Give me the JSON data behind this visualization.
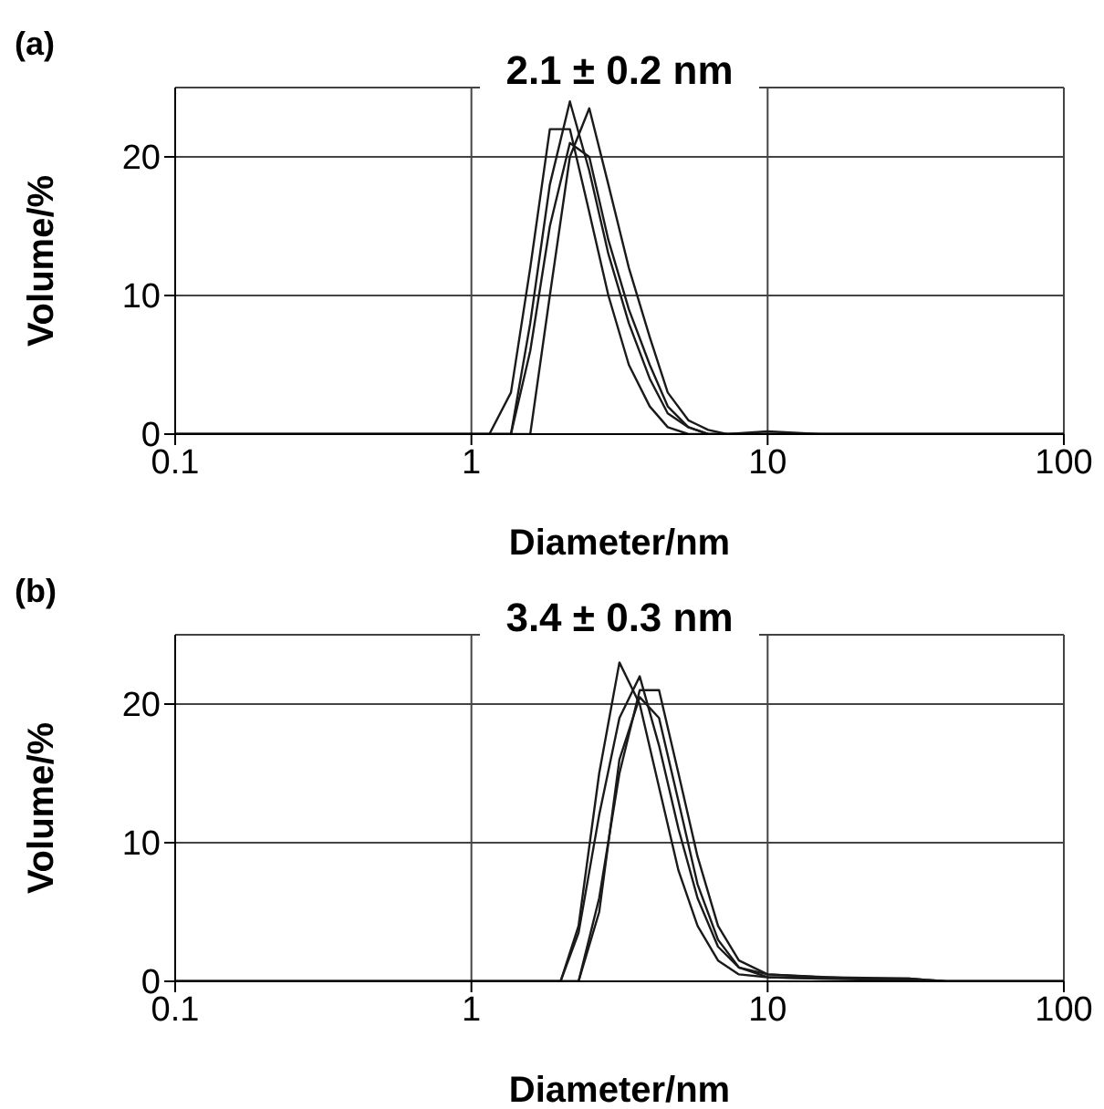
{
  "chart_data": [
    {
      "type": "line",
      "title": "2.1 ±  0.2 nm",
      "xlabel": "Diameter/nm",
      "ylabel": "Volume/%",
      "annotations": [
        "(a)"
      ],
      "log": "x",
      "grid": true,
      "line_style": "solid",
      "xlim": [
        0.1,
        100
      ],
      "xticks": [
        0.1,
        1,
        10,
        100
      ],
      "ylim": [
        0,
        25
      ],
      "yticks": [
        0,
        10,
        20
      ],
      "series": [
        {
          "color": "#1a1a1a",
          "x": [
            0.1,
            1.15,
            1.36,
            1.58,
            1.84,
            2.15,
            2.5,
            2.9,
            3.4,
            4.0,
            4.6,
            5.4,
            100
          ],
          "values": [
            0,
            0,
            3,
            12,
            22,
            22,
            16,
            10,
            5,
            2,
            0.5,
            0,
            0
          ]
        },
        {
          "color": "#1a1a1a",
          "x": [
            0.1,
            1.36,
            1.58,
            1.84,
            2.15,
            2.5,
            2.9,
            3.4,
            4.0,
            4.6,
            5.4,
            6.3,
            100
          ],
          "values": [
            0,
            0,
            8,
            18,
            24,
            19,
            13,
            8,
            4,
            1.5,
            0.5,
            0,
            0
          ]
        },
        {
          "color": "#1a1a1a",
          "x": [
            0.1,
            1.36,
            1.58,
            1.84,
            2.15,
            2.5,
            2.9,
            3.4,
            4.0,
            4.6,
            5.4,
            6.3,
            100
          ],
          "values": [
            0,
            0,
            6,
            15,
            21,
            20,
            14,
            9,
            5,
            2,
            0.5,
            0,
            0
          ]
        },
        {
          "color": "#1a1a1a",
          "x": [
            0.1,
            1.58,
            1.84,
            2.15,
            2.5,
            2.9,
            3.4,
            4.0,
            4.6,
            5.4,
            6.3,
            7.3,
            10,
            15,
            100
          ],
          "values": [
            0,
            0,
            10,
            20,
            23.5,
            18,
            12,
            7,
            3,
            1,
            0.3,
            0,
            0.2,
            0,
            0
          ]
        }
      ]
    },
    {
      "type": "line",
      "title": "3.4 ±  0.3 nm",
      "xlabel": "Diameter/nm",
      "ylabel": "Volume/%",
      "annotations": [
        "(b)"
      ],
      "log": "x",
      "grid": true,
      "line_style": "solid",
      "xlim": [
        0.1,
        100
      ],
      "xticks": [
        0.1,
        1,
        10,
        100
      ],
      "ylim": [
        0,
        25
      ],
      "yticks": [
        0,
        10,
        20
      ],
      "series": [
        {
          "color": "#1a1a1a",
          "x": [
            0.1,
            2.0,
            2.3,
            2.7,
            3.16,
            3.7,
            4.3,
            5.0,
            5.8,
            6.8,
            8.0,
            10,
            15,
            30,
            40,
            100
          ],
          "values": [
            0,
            0,
            4,
            15,
            23,
            20,
            14,
            8,
            4,
            1.5,
            0.5,
            0.3,
            0.2,
            0.2,
            0,
            0
          ]
        },
        {
          "color": "#1a1a1a",
          "x": [
            0.1,
            2.0,
            2.3,
            2.7,
            3.16,
            3.7,
            4.3,
            5.0,
            5.8,
            6.8,
            8.0,
            10,
            15,
            30,
            40,
            100
          ],
          "values": [
            0,
            0,
            3.5,
            12,
            19,
            22,
            17,
            11,
            6,
            2.5,
            1,
            0.5,
            0.3,
            0.2,
            0,
            0
          ]
        },
        {
          "color": "#1a1a1a",
          "x": [
            0.1,
            2.3,
            2.7,
            3.16,
            3.7,
            4.3,
            5.0,
            5.8,
            6.8,
            8.0,
            10,
            20,
            40,
            100
          ],
          "values": [
            0,
            0,
            6,
            15,
            21,
            21,
            15,
            9,
            4,
            1.5,
            0.5,
            0.2,
            0,
            0
          ]
        },
        {
          "color": "#1a1a1a",
          "x": [
            0.1,
            2.3,
            2.7,
            3.16,
            3.7,
            4.3,
            5.0,
            5.8,
            6.8,
            8.0,
            10,
            40,
            100
          ],
          "values": [
            0,
            0,
            5,
            16,
            20.5,
            19,
            13,
            7,
            3,
            1,
            0.3,
            0,
            0
          ]
        }
      ]
    }
  ]
}
